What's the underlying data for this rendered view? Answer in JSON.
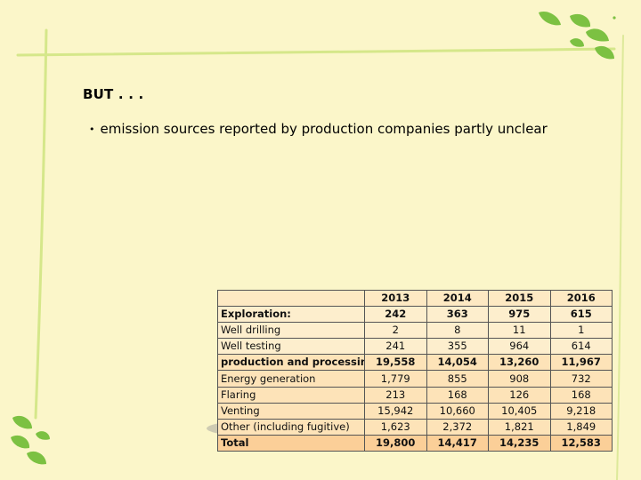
{
  "slide": {
    "heading": "BUT . . .",
    "bullet": "emission sources reported by production companies partly unclear"
  },
  "table": {
    "years": [
      "2013",
      "2014",
      "2015",
      "2016"
    ],
    "rows": [
      {
        "label": "Exploration:",
        "values": [
          "242",
          "363",
          "975",
          "615"
        ],
        "bold": true,
        "group": "expl"
      },
      {
        "label": "Well drilling",
        "values": [
          "2",
          "8",
          "11",
          "1"
        ],
        "bold": false,
        "group": "expl-sub"
      },
      {
        "label": "Well testing",
        "values": [
          "241",
          "355",
          "964",
          "614"
        ],
        "bold": false,
        "group": "expl-sub"
      },
      {
        "label": "production and processing:",
        "values": [
          "19,558",
          "14,054",
          "13,260",
          "11,967"
        ],
        "bold": true,
        "group": "prod"
      },
      {
        "label": "Energy generation",
        "values": [
          "1,779",
          "855",
          "908",
          "732"
        ],
        "bold": false,
        "group": "prod-sub"
      },
      {
        "label": "Flaring",
        "values": [
          "213",
          "168",
          "126",
          "168"
        ],
        "bold": false,
        "group": "prod-sub"
      },
      {
        "label": "Venting",
        "values": [
          "15,942",
          "10,660",
          "10,405",
          "9,218"
        ],
        "bold": false,
        "group": "prod-sub"
      },
      {
        "label": "Other (including fugitive)",
        "values": [
          "1,623",
          "2,372",
          "1,821",
          "1,849"
        ],
        "bold": false,
        "group": "prod-sub"
      },
      {
        "label": "Total",
        "values": [
          "19,800",
          "14,417",
          "14,235",
          "12,583"
        ],
        "bold": true,
        "group": "total"
      }
    ],
    "highlighted_row": "Other (including fugitive)"
  },
  "colors": {
    "background": "#fbf6c9",
    "frame_line": "#cfe37a",
    "leaf_green": "#7cc142",
    "total_row": "#fbcf98"
  }
}
